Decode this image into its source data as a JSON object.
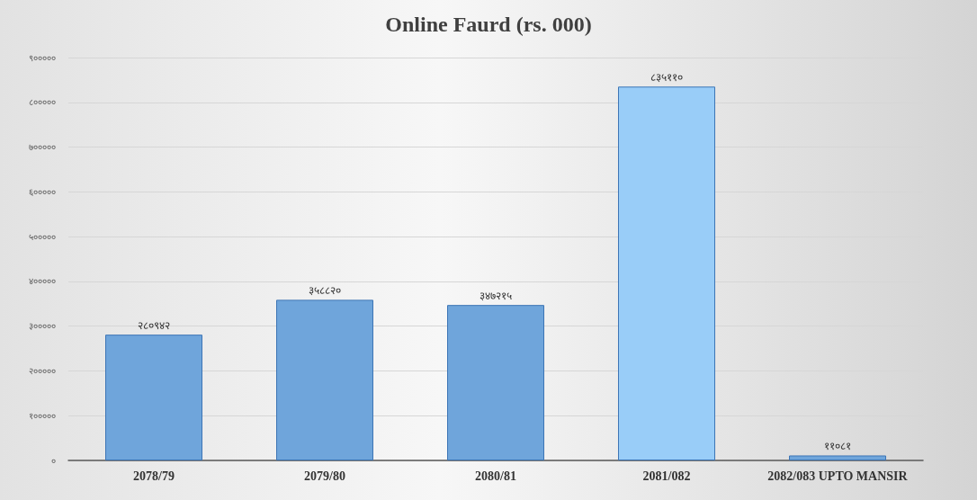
{
  "chart_data": {
    "type": "bar",
    "title": "Online Faurd (rs. 000)",
    "categories": [
      "2078/79",
      "2079/80",
      "2080/81",
      "2081/082",
      "2082/083 UPTO MANSIR"
    ],
    "values": [
      280942,
      358820,
      347215,
      835110,
      11081
    ],
    "value_labels": [
      "२८०९४२",
      "३५८८२०",
      "३४७२१५",
      "८३५११०",
      "११०८१"
    ],
    "colors": [
      "#6fa5db",
      "#6fa5db",
      "#6fa5db",
      "#99cdf8",
      "#6fa5db"
    ],
    "ylim": [
      0,
      900000
    ],
    "yticks": [
      {
        "value": 0,
        "label": "०"
      },
      {
        "value": 100000,
        "label": "१०००००"
      },
      {
        "value": 200000,
        "label": "२०००००"
      },
      {
        "value": 300000,
        "label": "३०००००"
      },
      {
        "value": 400000,
        "label": "४०००००"
      },
      {
        "value": 500000,
        "label": "५०००००"
      },
      {
        "value": 600000,
        "label": "६०००००"
      },
      {
        "value": 700000,
        "label": "७०००००"
      },
      {
        "value": 800000,
        "label": "८०००००"
      },
      {
        "value": 900000,
        "label": "९०००००"
      }
    ],
    "grid": "y"
  }
}
